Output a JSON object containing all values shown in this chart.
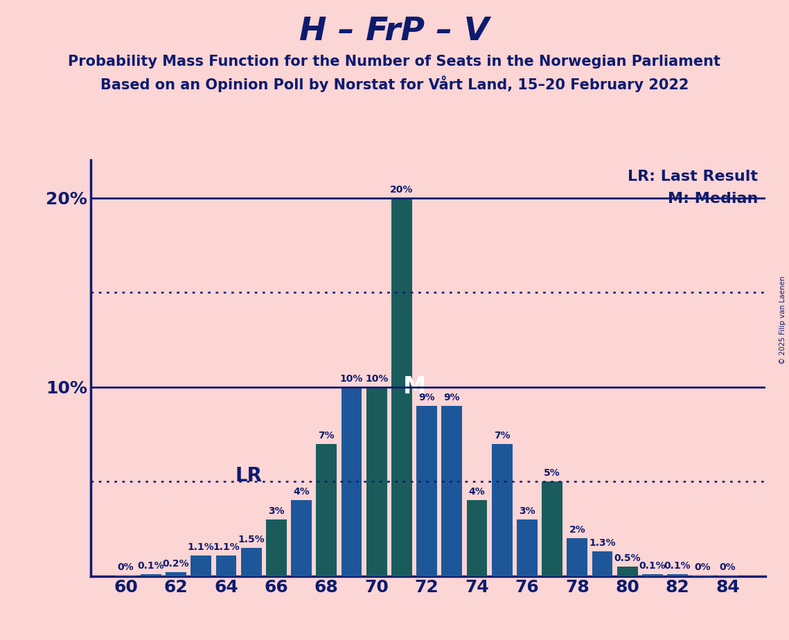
{
  "title": "H – FrP – V",
  "subtitle1": "Probability Mass Function for the Number of Seats in the Norwegian Parliament",
  "subtitle2": "Based on an Opinion Poll by Norstat for Vårt Land, 15–20 February 2022",
  "copyright": "© 2025 Filip van Laenen",
  "legend_lr": "LR: Last Result",
  "legend_m": "M: Median",
  "background_color": "#fcd5d5",
  "seats": [
    60,
    61,
    62,
    63,
    64,
    65,
    66,
    67,
    68,
    69,
    70,
    71,
    72,
    73,
    74,
    75,
    76,
    77,
    78,
    79,
    80,
    81,
    82,
    83,
    84
  ],
  "values": [
    0.02,
    0.1,
    0.2,
    1.1,
    1.1,
    1.5,
    3.0,
    4.0,
    7.0,
    10.0,
    10.0,
    20.0,
    9.0,
    9.0,
    4.0,
    7.0,
    3.0,
    5.0,
    2.0,
    1.3,
    0.5,
    0.1,
    0.1,
    0.02,
    0.02
  ],
  "labels": [
    "0%",
    "0.1%",
    "0.2%",
    "1.1%",
    "1.1%",
    "1.5%",
    "3%",
    "4%",
    "7%",
    "10%",
    "10%",
    "20%",
    "9%",
    "9%",
    "4%",
    "7%",
    "3%",
    "5%",
    "2%",
    "1.3%",
    "0.5%",
    "0.1%",
    "0.1%",
    "0%",
    "0%"
  ],
  "teal_bars": [
    66,
    68,
    70,
    71,
    74,
    77,
    80
  ],
  "lr_seat": 66,
  "median_seat": 71,
  "ylim_max": 22,
  "xlim_min": 58.6,
  "xlim_max": 85.5,
  "xtick_seats": [
    60,
    62,
    64,
    66,
    68,
    70,
    72,
    74,
    76,
    78,
    80,
    82,
    84
  ],
  "hline_solid": [
    10.0,
    20.0
  ],
  "hline_dotted": [
    5.0,
    15.0
  ],
  "title_color": "#0d1b6e",
  "bar_color_blue": "#1e5799",
  "bar_color_teal": "#1a5c5c",
  "solid_line_color": "#0d1b6e",
  "dotted_line_color": "#0d1b6e",
  "title_fontsize": 34,
  "subtitle_fontsize": 15,
  "tick_fontsize": 18,
  "label_fontsize": 10,
  "legend_fontsize": 16,
  "lr_label_fontsize": 20,
  "m_label_fontsize": 24,
  "bar_width": 0.82
}
